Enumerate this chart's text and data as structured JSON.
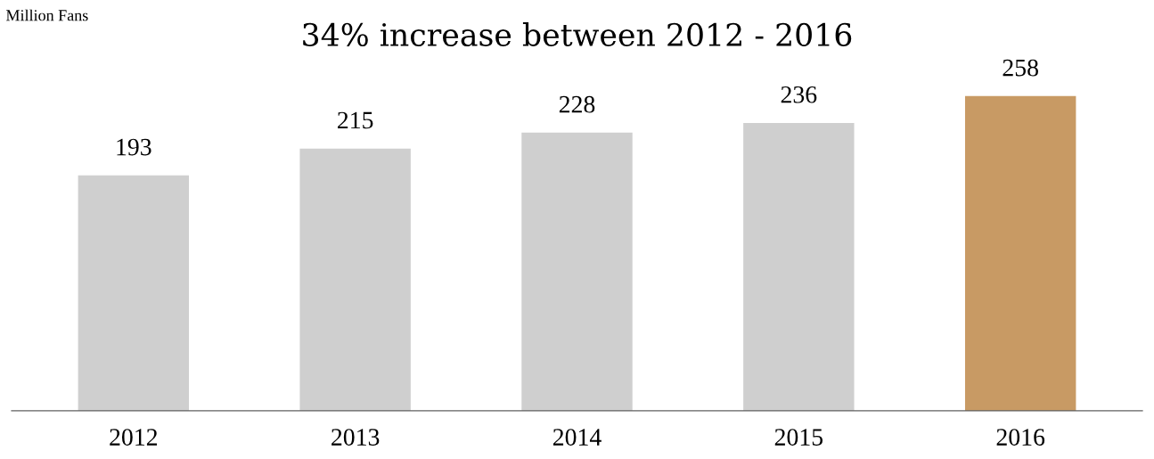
{
  "chart_data": {
    "type": "bar",
    "title": "34% increase between 2012 - 2016",
    "ylabel": "Million Fans",
    "categories": [
      "2012",
      "2013",
      "2014",
      "2015",
      "2016"
    ],
    "values": [
      193,
      215,
      228,
      236,
      258
    ],
    "colors": [
      "#cfcfcf",
      "#cfcfcf",
      "#cfcfcf",
      "#cfcfcf",
      "#c89a64"
    ],
    "data_labels": true,
    "grid": false,
    "legend": false,
    "tick_labels": "x"
  }
}
